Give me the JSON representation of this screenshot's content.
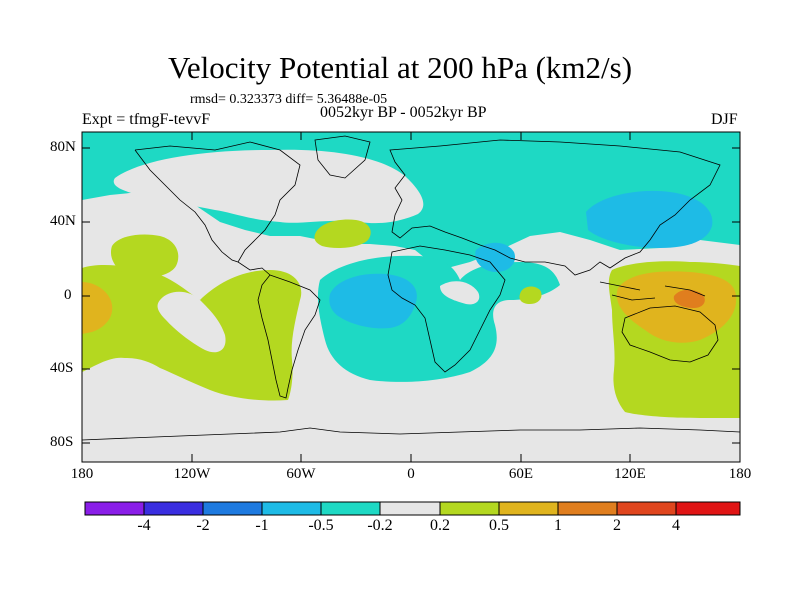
{
  "title": "Velocity Potential at 200 hPa (km2/s)",
  "stats": "rmsd= 0.323373 diff= 5.36488e-05",
  "experiment": "Expt = tfmgF-tevvF",
  "period": "0052kyr BP - 0052kyr BP",
  "season": "DJF",
  "lat_labels": [
    "80N",
    "40N",
    "0",
    "40S",
    "80S"
  ],
  "lon_labels": [
    "180",
    "120W",
    "60W",
    "0",
    "60E",
    "120E",
    "180"
  ],
  "colorbar": {
    "labels": [
      "-4",
      "-2",
      "-1",
      "-0.5",
      "-0.2",
      "0.2",
      "0.5",
      "1",
      "2",
      "4"
    ],
    "colors": [
      "#8a1ee8",
      "#3a2ee0",
      "#1e7ae0",
      "#1ebbe6",
      "#1ed9c4",
      "#e6e6e6",
      "#b4d820",
      "#e0b41e",
      "#e07e1e",
      "#e0461e",
      "#e01414"
    ]
  },
  "palette": {
    "neutral": "#e6e6e6",
    "cyan": "#1ed9c4",
    "blue": "#1ebbe6",
    "green": "#b4d820",
    "gold": "#e0b41e",
    "orange": "#e07e1e"
  }
}
